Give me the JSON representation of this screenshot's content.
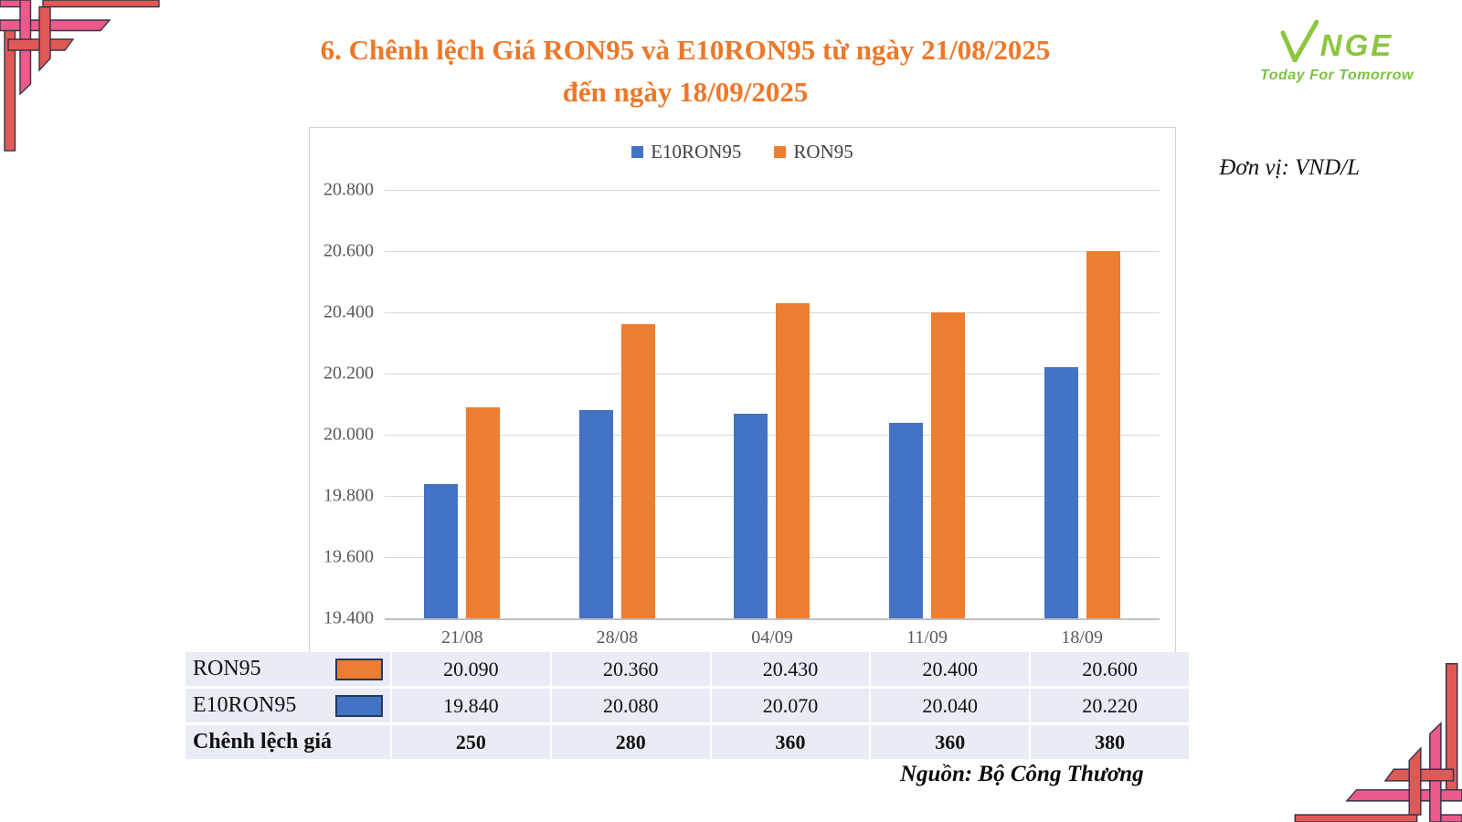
{
  "title": {
    "line1": "6. Chênh lệch Giá RON95 và E10RON95 từ ngày 21/08/2025",
    "line2": "đến ngày 18/09/2025"
  },
  "logo": {
    "name": "NGE",
    "tagline": "Today For Tomorrow"
  },
  "unit_label": "Đơn vị: VND/L",
  "source": "Nguồn: Bộ Công Thương",
  "chart_data": {
    "type": "bar",
    "categories": [
      "21/08",
      "28/08",
      "04/09",
      "11/09",
      "18/09"
    ],
    "series": [
      {
        "name": "E10RON95",
        "color": "#4472C4",
        "values": [
          19840,
          20080,
          20070,
          20040,
          20220
        ]
      },
      {
        "name": "RON95",
        "color": "#ED7D31",
        "values": [
          20090,
          20360,
          20430,
          20400,
          20600
        ]
      }
    ],
    "title": "6. Chênh lệch Giá RON95 và E10RON95 từ ngày 21/08/2025 đến ngày 18/09/2025",
    "xlabel": "",
    "ylabel": "VND/L",
    "ylim": [
      19400,
      20800
    ],
    "ytick_step": 200,
    "ytick_labels_top_to_bottom": [
      "20.800",
      "20.600",
      "20.400",
      "20.200",
      "20.000",
      "19.800",
      "19.600",
      "19.400"
    ],
    "grid": true,
    "legend_position": "top-center"
  },
  "table": {
    "rows": [
      {
        "label": "RON95",
        "swatch": "#ED7D31",
        "bold": false,
        "values": [
          "20.090",
          "20.360",
          "20.430",
          "20.400",
          "20.600"
        ]
      },
      {
        "label": "E10RON95",
        "swatch": "#4472C4",
        "bold": false,
        "values": [
          "19.840",
          "20.080",
          "20.070",
          "20.040",
          "20.220"
        ]
      },
      {
        "label": "Chênh lệch giá",
        "swatch": null,
        "bold": true,
        "values": [
          "250",
          "280",
          "360",
          "360",
          "380"
        ]
      }
    ]
  },
  "colors": {
    "title_orange": "#ED7829",
    "bar_blue": "#4472C4",
    "bar_orange": "#ED7D31",
    "logo_green": "#8CC540",
    "ornament_pink": "#EC5A8A",
    "ornament_coral": "#E05A55",
    "table_row_bg": "#E9EBF5",
    "axis_text": "#595959",
    "gridline": "#D9D9D9"
  }
}
